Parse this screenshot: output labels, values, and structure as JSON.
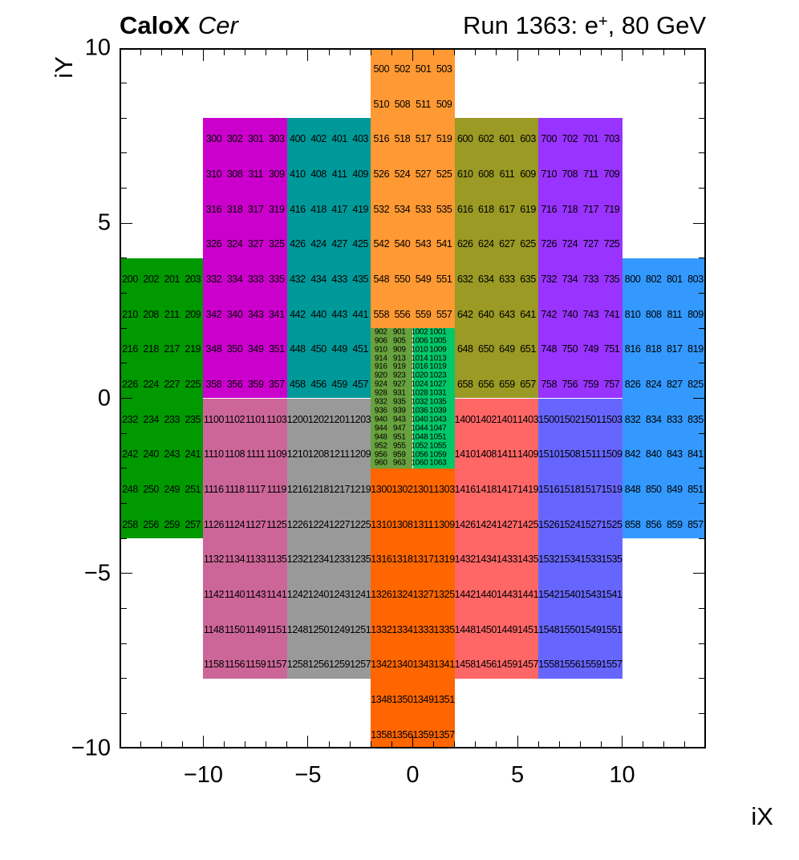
{
  "header": {
    "experiment": "CaloX",
    "detector": "Cer",
    "run_prefix": "Run 1363: e",
    "run_sup": "+",
    "run_suffix": ", 80 GeV"
  },
  "axes": {
    "x": {
      "title": "iX",
      "min": -14,
      "max": 14,
      "major_tick_values": [
        -10,
        -5,
        0,
        5,
        10
      ],
      "tick_labels": [
        "−10",
        "−5",
        "0",
        "5",
        "10"
      ]
    },
    "y": {
      "title": "iY",
      "min": -10,
      "max": 10,
      "major_tick_values": [
        10,
        5,
        0,
        -5,
        -10
      ],
      "tick_labels": [
        "10",
        "5",
        "0",
        "−5",
        "−10"
      ]
    }
  },
  "chart_data": {
    "type": "heatmap",
    "description": "Calorimeter channel map: colored tower groups labeled with channel numbers",
    "x_range": [
      -14,
      14
    ],
    "y_range": [
      -10,
      10
    ],
    "grid": false,
    "blocks": [
      {
        "name": "ch200",
        "color": "#009900",
        "x": [
          -14,
          -10
        ],
        "y": [
          -4,
          4
        ],
        "rows": [
          [
            200,
            202,
            201,
            203
          ],
          [
            210,
            208,
            211,
            209
          ],
          [
            216,
            218,
            217,
            219
          ],
          [
            226,
            224,
            227,
            225
          ],
          [
            232,
            234,
            233,
            235
          ],
          [
            242,
            240,
            243,
            241
          ],
          [
            248,
            250,
            249,
            251
          ],
          [
            258,
            256,
            259,
            257
          ]
        ]
      },
      {
        "name": "ch300",
        "color": "#CC00CC",
        "x": [
          -10,
          -6
        ],
        "y": [
          0,
          8
        ],
        "rows": [
          [
            300,
            302,
            301,
            303
          ],
          [
            310,
            308,
            311,
            309
          ],
          [
            316,
            318,
            317,
            319
          ],
          [
            326,
            324,
            327,
            325
          ],
          [
            332,
            334,
            333,
            335
          ],
          [
            342,
            340,
            343,
            341
          ],
          [
            348,
            350,
            349,
            351
          ],
          [
            358,
            356,
            359,
            357
          ]
        ]
      },
      {
        "name": "ch400",
        "color": "#009999",
        "x": [
          -6,
          -2
        ],
        "y": [
          0,
          8
        ],
        "rows": [
          [
            400,
            402,
            401,
            403
          ],
          [
            410,
            408,
            411,
            409
          ],
          [
            416,
            418,
            417,
            419
          ],
          [
            426,
            424,
            427,
            425
          ],
          [
            432,
            434,
            433,
            435
          ],
          [
            442,
            440,
            443,
            441
          ],
          [
            448,
            450,
            449,
            451
          ],
          [
            458,
            456,
            459,
            457
          ]
        ]
      },
      {
        "name": "ch500",
        "color": "#FF9933",
        "x": [
          -2,
          2
        ],
        "y": [
          2,
          10
        ],
        "rows": [
          [
            500,
            502,
            501,
            503
          ],
          [
            510,
            508,
            511,
            509
          ],
          [
            516,
            518,
            517,
            519
          ],
          [
            526,
            524,
            527,
            525
          ],
          [
            532,
            534,
            533,
            535
          ],
          [
            542,
            540,
            543,
            541
          ],
          [
            548,
            550,
            549,
            551
          ],
          [
            558,
            556,
            559,
            557
          ]
        ]
      },
      {
        "name": "ch600",
        "color": "#9A9A24",
        "x": [
          2,
          6
        ],
        "y": [
          0,
          8
        ],
        "rows": [
          [
            600,
            602,
            601,
            603
          ],
          [
            610,
            608,
            611,
            609
          ],
          [
            616,
            618,
            617,
            619
          ],
          [
            626,
            624,
            627,
            625
          ],
          [
            632,
            634,
            633,
            635
          ],
          [
            642,
            640,
            643,
            641
          ],
          [
            648,
            650,
            649,
            651
          ],
          [
            658,
            656,
            659,
            657
          ]
        ]
      },
      {
        "name": "ch700",
        "color": "#9933FF",
        "x": [
          6,
          10
        ],
        "y": [
          0,
          8
        ],
        "rows": [
          [
            700,
            702,
            701,
            703
          ],
          [
            710,
            708,
            711,
            709
          ],
          [
            716,
            718,
            717,
            719
          ],
          [
            726,
            724,
            727,
            725
          ],
          [
            732,
            734,
            733,
            735
          ],
          [
            742,
            740,
            743,
            741
          ],
          [
            748,
            750,
            749,
            751
          ],
          [
            758,
            756,
            759,
            757
          ]
        ]
      },
      {
        "name": "ch800",
        "color": "#3399FF",
        "x": [
          10,
          14
        ],
        "y": [
          -4,
          4
        ],
        "rows": [
          [
            800,
            802,
            801,
            803
          ],
          [
            810,
            808,
            811,
            809
          ],
          [
            816,
            818,
            817,
            819
          ],
          [
            826,
            824,
            827,
            825
          ],
          [
            832,
            834,
            833,
            835
          ],
          [
            842,
            840,
            843,
            841
          ],
          [
            848,
            850,
            849,
            851
          ],
          [
            858,
            856,
            859,
            857
          ]
        ]
      },
      {
        "name": "ch900",
        "color": "#68A23F",
        "x": [
          -2,
          0
        ],
        "y": [
          -2,
          2
        ],
        "rows": [
          [
            902,
            901
          ],
          [
            906,
            905
          ],
          [
            910,
            909
          ],
          [
            914,
            913
          ],
          [
            916,
            919
          ],
          [
            920,
            923
          ],
          [
            924,
            927
          ],
          [
            928,
            931
          ],
          [
            932,
            935
          ],
          [
            936,
            939
          ],
          [
            940,
            943
          ],
          [
            944,
            947
          ],
          [
            948,
            951
          ],
          [
            952,
            955
          ],
          [
            956,
            959
          ],
          [
            960,
            963
          ]
        ]
      },
      {
        "name": "ch1000",
        "color": "#00C869",
        "x": [
          0,
          2
        ],
        "y": [
          -2,
          2
        ],
        "rows": [
          [
            1002,
            1001
          ],
          [
            1006,
            1005
          ],
          [
            1010,
            1009
          ],
          [
            1014,
            1013
          ],
          [
            1016,
            1019
          ],
          [
            1020,
            1023
          ],
          [
            1024,
            1027
          ],
          [
            1028,
            1031
          ],
          [
            1032,
            1035
          ],
          [
            1036,
            1039
          ],
          [
            1040,
            1043
          ],
          [
            1044,
            1047
          ],
          [
            1048,
            1051
          ],
          [
            1052,
            1055
          ],
          [
            1056,
            1059
          ],
          [
            1060,
            1063
          ]
        ]
      },
      {
        "name": "ch1100",
        "color": "#CC6699",
        "x": [
          -10,
          -6
        ],
        "y": [
          -8,
          0
        ],
        "rows": [
          [
            1100,
            1102,
            1101,
            1103
          ],
          [
            1110,
            1108,
            1111,
            1109
          ],
          [
            1116,
            1118,
            1117,
            1119
          ],
          [
            1126,
            1124,
            1127,
            1125
          ],
          [
            1132,
            1134,
            1133,
            1135
          ],
          [
            1142,
            1140,
            1143,
            1141
          ],
          [
            1148,
            1150,
            1149,
            1151
          ],
          [
            1158,
            1156,
            1159,
            1157
          ]
        ]
      },
      {
        "name": "ch1200",
        "color": "#999999",
        "x": [
          -6,
          -2
        ],
        "y": [
          -8,
          0
        ],
        "rows": [
          [
            1200,
            1202,
            1201,
            1203
          ],
          [
            1210,
            1208,
            1211,
            1209
          ],
          [
            1216,
            1218,
            1217,
            1219
          ],
          [
            1226,
            1224,
            1227,
            1225
          ],
          [
            1232,
            1234,
            1233,
            1235
          ],
          [
            1242,
            1240,
            1243,
            1241
          ],
          [
            1248,
            1250,
            1249,
            1251
          ],
          [
            1258,
            1256,
            1259,
            1257
          ]
        ]
      },
      {
        "name": "ch1300",
        "color": "#FF6600",
        "x": [
          -2,
          2
        ],
        "y": [
          -10,
          -2
        ],
        "rows": [
          [
            1300,
            1302,
            1301,
            1303
          ],
          [
            1310,
            1308,
            1311,
            1309
          ],
          [
            1316,
            1318,
            1317,
            1319
          ],
          [
            1326,
            1324,
            1327,
            1325
          ],
          [
            1332,
            1334,
            1333,
            1335
          ],
          [
            1342,
            1340,
            1343,
            1341
          ],
          [
            1348,
            1350,
            1349,
            1351
          ],
          [
            1358,
            1356,
            1359,
            1357
          ]
        ]
      },
      {
        "name": "ch1400",
        "color": "#FF6666",
        "x": [
          2,
          6
        ],
        "y": [
          -8,
          0
        ],
        "rows": [
          [
            1400,
            1402,
            1401,
            1403
          ],
          [
            1410,
            1408,
            1411,
            1409
          ],
          [
            1416,
            1418,
            1417,
            1419
          ],
          [
            1426,
            1424,
            1427,
            1425
          ],
          [
            1432,
            1434,
            1433,
            1435
          ],
          [
            1442,
            1440,
            1443,
            1441
          ],
          [
            1448,
            1450,
            1449,
            1451
          ],
          [
            1458,
            1456,
            1459,
            1457
          ]
        ]
      },
      {
        "name": "ch1500",
        "color": "#6666FF",
        "x": [
          6,
          10
        ],
        "y": [
          -8,
          0
        ],
        "rows": [
          [
            1500,
            1502,
            1501,
            1503
          ],
          [
            1510,
            1508,
            1511,
            1509
          ],
          [
            1516,
            1518,
            1517,
            1519
          ],
          [
            1526,
            1524,
            1527,
            1525
          ],
          [
            1532,
            1534,
            1533,
            1535
          ],
          [
            1542,
            1540,
            1543,
            1541
          ],
          [
            1548,
            1550,
            1549,
            1551
          ],
          [
            1558,
            1556,
            1559,
            1557
          ]
        ]
      }
    ]
  }
}
